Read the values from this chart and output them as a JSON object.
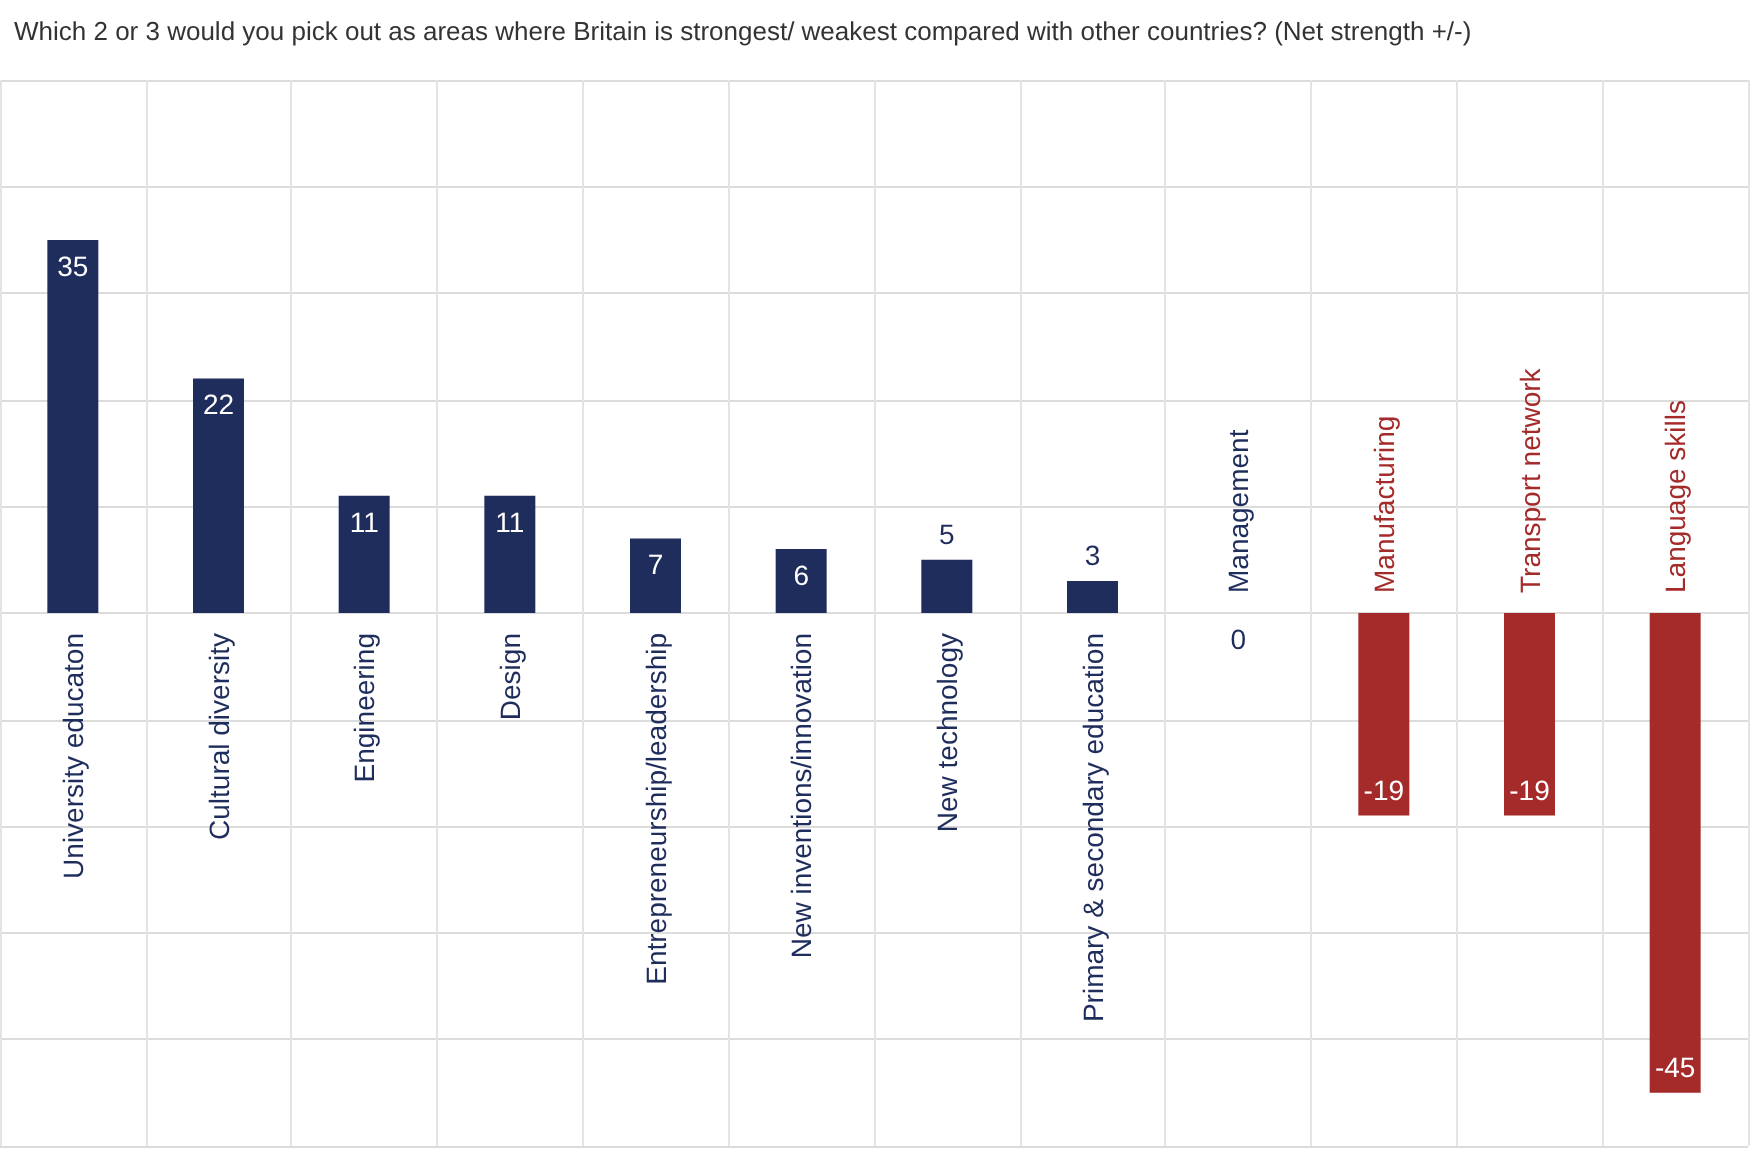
{
  "chart_data": {
    "type": "bar",
    "title": "Which 2 or 3 would you pick out as areas where Britain is strongest/ weakest compared with other countries? (Net strength +/-)",
    "categories": [
      "University educaton",
      "Cultural diversity",
      "Engineering",
      "Design",
      "Entrepreneurship/leadership",
      "New inventions/innovation",
      "New technology",
      "Primary & secondary education",
      "Management",
      "Manufacturing",
      "Transport network",
      "Language skills"
    ],
    "values": [
      35,
      22,
      11,
      11,
      7,
      6,
      5,
      3,
      0,
      -19,
      -19,
      -45
    ],
    "colors": [
      "#1f2d5c",
      "#1f2d5c",
      "#1f2d5c",
      "#1f2d5c",
      "#1f2d5c",
      "#1f2d5c",
      "#1f2d5c",
      "#1f2d5c",
      "#1f2d5c",
      "#a52a2a",
      "#a52a2a",
      "#a52a2a"
    ],
    "ylim": [
      -50,
      50
    ],
    "yticks": [
      {
        "value": -50,
        "label": null
      },
      {
        "value": -40,
        "label": null
      },
      {
        "value": -30,
        "label": null
      },
      {
        "value": -20,
        "label": null
      },
      {
        "value": -10,
        "label": null
      },
      {
        "value": 0,
        "label": null
      },
      {
        "value": 10,
        "label": null
      },
      {
        "value": 20,
        "label": null
      },
      {
        "value": 30,
        "label": null
      },
      {
        "value": 40,
        "label": null
      },
      {
        "value": 50,
        "label": null
      }
    ],
    "grid": true,
    "tick_labels": false,
    "data_labels": true
  }
}
